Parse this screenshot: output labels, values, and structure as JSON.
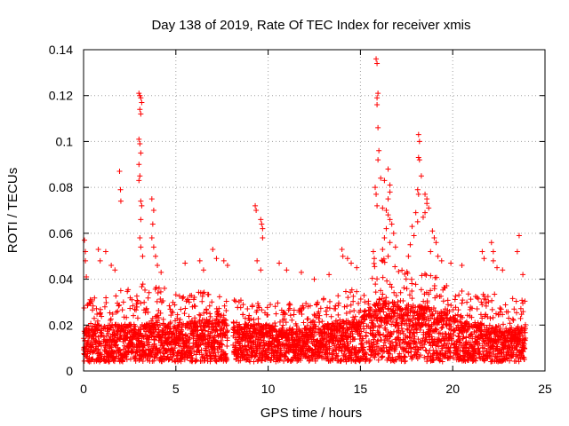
{
  "chart_data": {
    "type": "scatter",
    "title": "Day 138 of 2019, Rate Of TEC Index for receiver xmis",
    "xlabel": "GPS time / hours",
    "ylabel": "ROTI / TECUs",
    "xlim": [
      0,
      25
    ],
    "ylim": [
      0,
      0.14
    ],
    "xticks": [
      0,
      5,
      10,
      15,
      20,
      25
    ],
    "yticks": [
      0,
      0.02,
      0.04,
      0.06,
      0.08,
      0.1,
      0.12,
      0.14
    ],
    "xtick_labels": [
      "0",
      "5",
      "10",
      "15",
      "20",
      "25"
    ],
    "ytick_labels": [
      "0",
      "0.02",
      "0.04",
      "0.06",
      "0.08",
      "0.1",
      "0.12",
      "0.14"
    ],
    "grid": true,
    "marker": "plus",
    "color": "#ff0000",
    "series": [
      {
        "name": "ROTI",
        "baseline_profile": {
          "hours": [
            0,
            1,
            2,
            3,
            4,
            5,
            6,
            7,
            8,
            9,
            10,
            11,
            12,
            13,
            14,
            15,
            15.5,
            16,
            16.5,
            17,
            18,
            19,
            20,
            21,
            22,
            23,
            24
          ],
          "typical": [
            0.013,
            0.014,
            0.014,
            0.014,
            0.015,
            0.014,
            0.015,
            0.016,
            0.015,
            0.014,
            0.014,
            0.013,
            0.013,
            0.014,
            0.015,
            0.017,
            0.02,
            0.022,
            0.022,
            0.02,
            0.02,
            0.019,
            0.016,
            0.014,
            0.014,
            0.013,
            0.013
          ],
          "upper": [
            0.03,
            0.034,
            0.036,
            0.038,
            0.038,
            0.034,
            0.034,
            0.036,
            0.032,
            0.03,
            0.03,
            0.03,
            0.03,
            0.032,
            0.034,
            0.038,
            0.045,
            0.05,
            0.05,
            0.046,
            0.044,
            0.042,
            0.036,
            0.034,
            0.034,
            0.032,
            0.032
          ]
        },
        "points": [
          {
            "x": 0.05,
            "y": 0.057
          },
          {
            "x": 0.1,
            "y": 0.052
          },
          {
            "x": 0.1,
            "y": 0.048
          },
          {
            "x": 0.15,
            "y": 0.041
          },
          {
            "x": 0.8,
            "y": 0.053
          },
          {
            "x": 0.9,
            "y": 0.048
          },
          {
            "x": 1.2,
            "y": 0.052
          },
          {
            "x": 1.5,
            "y": 0.046
          },
          {
            "x": 1.7,
            "y": 0.044
          },
          {
            "x": 1.95,
            "y": 0.087
          },
          {
            "x": 2.0,
            "y": 0.079
          },
          {
            "x": 2.02,
            "y": 0.074
          },
          {
            "x": 3.0,
            "y": 0.121
          },
          {
            "x": 3.05,
            "y": 0.12
          },
          {
            "x": 3.1,
            "y": 0.119
          },
          {
            "x": 3.15,
            "y": 0.117
          },
          {
            "x": 3.05,
            "y": 0.114
          },
          {
            "x": 3.1,
            "y": 0.112
          },
          {
            "x": 3.0,
            "y": 0.101
          },
          {
            "x": 3.05,
            "y": 0.099
          },
          {
            "x": 3.1,
            "y": 0.095
          },
          {
            "x": 3.0,
            "y": 0.09
          },
          {
            "x": 3.05,
            "y": 0.085
          },
          {
            "x": 3.0,
            "y": 0.083
          },
          {
            "x": 3.1,
            "y": 0.074
          },
          {
            "x": 3.15,
            "y": 0.072
          },
          {
            "x": 3.1,
            "y": 0.066
          },
          {
            "x": 3.05,
            "y": 0.058
          },
          {
            "x": 3.1,
            "y": 0.054
          },
          {
            "x": 3.2,
            "y": 0.05
          },
          {
            "x": 3.7,
            "y": 0.075
          },
          {
            "x": 3.8,
            "y": 0.07
          },
          {
            "x": 3.75,
            "y": 0.064
          },
          {
            "x": 3.7,
            "y": 0.058
          },
          {
            "x": 3.8,
            "y": 0.054
          },
          {
            "x": 3.9,
            "y": 0.05
          },
          {
            "x": 4.0,
            "y": 0.046
          },
          {
            "x": 4.2,
            "y": 0.043
          },
          {
            "x": 5.5,
            "y": 0.047
          },
          {
            "x": 6.3,
            "y": 0.048
          },
          {
            "x": 6.5,
            "y": 0.044
          },
          {
            "x": 7.0,
            "y": 0.053
          },
          {
            "x": 7.2,
            "y": 0.049
          },
          {
            "x": 7.6,
            "y": 0.048
          },
          {
            "x": 7.8,
            "y": 0.046
          },
          {
            "x": 9.3,
            "y": 0.072
          },
          {
            "x": 9.35,
            "y": 0.07
          },
          {
            "x": 9.6,
            "y": 0.066
          },
          {
            "x": 9.65,
            "y": 0.064
          },
          {
            "x": 9.7,
            "y": 0.062
          },
          {
            "x": 9.7,
            "y": 0.058
          },
          {
            "x": 9.4,
            "y": 0.048
          },
          {
            "x": 9.6,
            "y": 0.044
          },
          {
            "x": 10.6,
            "y": 0.047
          },
          {
            "x": 11.0,
            "y": 0.044
          },
          {
            "x": 11.8,
            "y": 0.043
          },
          {
            "x": 12.5,
            "y": 0.04
          },
          {
            "x": 13.3,
            "y": 0.042
          },
          {
            "x": 14.0,
            "y": 0.053
          },
          {
            "x": 14.05,
            "y": 0.05
          },
          {
            "x": 14.3,
            "y": 0.049
          },
          {
            "x": 14.5,
            "y": 0.047
          },
          {
            "x": 14.8,
            "y": 0.045
          },
          {
            "x": 15.85,
            "y": 0.136
          },
          {
            "x": 15.9,
            "y": 0.134
          },
          {
            "x": 15.95,
            "y": 0.121
          },
          {
            "x": 15.9,
            "y": 0.119
          },
          {
            "x": 15.9,
            "y": 0.116
          },
          {
            "x": 15.95,
            "y": 0.106
          },
          {
            "x": 16.0,
            "y": 0.096
          },
          {
            "x": 15.95,
            "y": 0.092
          },
          {
            "x": 16.1,
            "y": 0.084
          },
          {
            "x": 16.3,
            "y": 0.083
          },
          {
            "x": 16.5,
            "y": 0.088
          },
          {
            "x": 16.6,
            "y": 0.081
          },
          {
            "x": 16.6,
            "y": 0.078
          },
          {
            "x": 16.5,
            "y": 0.075
          },
          {
            "x": 15.8,
            "y": 0.08
          },
          {
            "x": 15.85,
            "y": 0.077
          },
          {
            "x": 15.9,
            "y": 0.072
          },
          {
            "x": 16.2,
            "y": 0.071
          },
          {
            "x": 16.4,
            "y": 0.07
          },
          {
            "x": 16.5,
            "y": 0.068
          },
          {
            "x": 16.6,
            "y": 0.066
          },
          {
            "x": 16.7,
            "y": 0.064
          },
          {
            "x": 16.4,
            "y": 0.062
          },
          {
            "x": 16.8,
            "y": 0.06
          },
          {
            "x": 16.3,
            "y": 0.058
          },
          {
            "x": 16.6,
            "y": 0.056
          },
          {
            "x": 16.9,
            "y": 0.054
          },
          {
            "x": 16.2,
            "y": 0.053
          },
          {
            "x": 16.5,
            "y": 0.05
          },
          {
            "x": 15.7,
            "y": 0.052
          },
          {
            "x": 15.75,
            "y": 0.049
          },
          {
            "x": 18.15,
            "y": 0.103
          },
          {
            "x": 18.2,
            "y": 0.1
          },
          {
            "x": 18.15,
            "y": 0.093
          },
          {
            "x": 18.2,
            "y": 0.092
          },
          {
            "x": 18.3,
            "y": 0.085
          },
          {
            "x": 18.1,
            "y": 0.079
          },
          {
            "x": 18.15,
            "y": 0.077
          },
          {
            "x": 18.5,
            "y": 0.077
          },
          {
            "x": 18.6,
            "y": 0.075
          },
          {
            "x": 18.6,
            "y": 0.073
          },
          {
            "x": 18.7,
            "y": 0.071
          },
          {
            "x": 18.5,
            "y": 0.069
          },
          {
            "x": 18.4,
            "y": 0.067
          },
          {
            "x": 18.0,
            "y": 0.069
          },
          {
            "x": 18.1,
            "y": 0.065
          },
          {
            "x": 17.8,
            "y": 0.063
          },
          {
            "x": 17.9,
            "y": 0.059
          },
          {
            "x": 18.9,
            "y": 0.061
          },
          {
            "x": 19.0,
            "y": 0.058
          },
          {
            "x": 19.1,
            "y": 0.056
          },
          {
            "x": 17.7,
            "y": 0.055
          },
          {
            "x": 18.8,
            "y": 0.052
          },
          {
            "x": 19.2,
            "y": 0.05
          },
          {
            "x": 17.6,
            "y": 0.05
          },
          {
            "x": 19.4,
            "y": 0.048
          },
          {
            "x": 19.9,
            "y": 0.047
          },
          {
            "x": 20.5,
            "y": 0.046
          },
          {
            "x": 21.6,
            "y": 0.052
          },
          {
            "x": 21.7,
            "y": 0.049
          },
          {
            "x": 22.1,
            "y": 0.056
          },
          {
            "x": 22.2,
            "y": 0.052
          },
          {
            "x": 22.2,
            "y": 0.048
          },
          {
            "x": 22.4,
            "y": 0.045
          },
          {
            "x": 22.7,
            "y": 0.044
          },
          {
            "x": 23.6,
            "y": 0.059
          },
          {
            "x": 23.5,
            "y": 0.052
          },
          {
            "x": 23.8,
            "y": 0.042
          }
        ]
      }
    ]
  }
}
